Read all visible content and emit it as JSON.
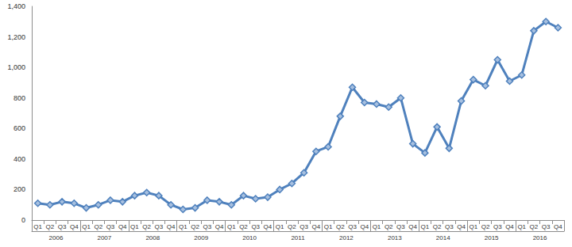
{
  "chart_data": {
    "type": "line",
    "categories": [
      "Q1",
      "Q2",
      "Q3",
      "Q4",
      "Q1",
      "Q2",
      "Q3",
      "Q4",
      "Q1",
      "Q2",
      "Q3",
      "Q4",
      "Q1",
      "Q2",
      "Q3",
      "Q4",
      "Q1",
      "Q2",
      "Q3",
      "Q4",
      "Q1",
      "Q2",
      "Q3",
      "Q4",
      "Q1",
      "Q2",
      "Q3",
      "Q4",
      "Q1",
      "Q2",
      "Q3",
      "Q4",
      "Q1",
      "Q2",
      "Q3",
      "Q4",
      "Q1",
      "Q2",
      "Q3",
      "Q4",
      "Q1",
      "Q2",
      "Q3",
      "Q4"
    ],
    "category_groups": [
      "2006",
      "2007",
      "2008",
      "2009",
      "2010",
      "2011",
      "2012",
      "2013",
      "2014",
      "2015",
      "2016"
    ],
    "values": [
      110,
      100,
      120,
      110,
      80,
      100,
      130,
      120,
      160,
      180,
      160,
      100,
      70,
      80,
      130,
      120,
      100,
      160,
      140,
      150,
      200,
      240,
      310,
      450,
      480,
      680,
      870,
      770,
      760,
      740,
      800,
      500,
      440,
      610,
      470,
      780,
      920,
      880,
      1050,
      910,
      950,
      1240,
      1300,
      1260
    ],
    "color": "#4f81bd",
    "marker": "diamond",
    "ylim": [
      0,
      1400
    ],
    "yticks": [
      0,
      200,
      400,
      600,
      800,
      {
        "value": 1000,
        "label": "1,000"
      },
      {
        "value": 1200,
        "label": "1,200"
      },
      {
        "value": 1400,
        "label": "1,400"
      }
    ],
    "grid": false
  }
}
